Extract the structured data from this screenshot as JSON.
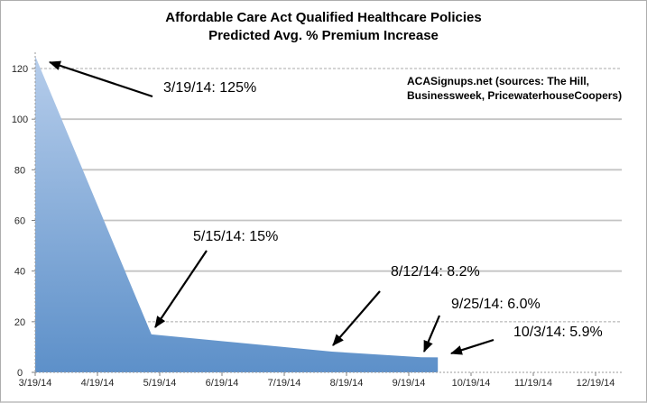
{
  "chart_data": {
    "type": "area",
    "title_lines": [
      "Affordable Care Act Qualified Healthcare Policies",
      "Predicted Avg. % Premium Increase"
    ],
    "source_lines": [
      "ACASignups.net (sources: The Hill,",
      "Businessweek, PricewaterhouseCoopers)"
    ],
    "series": [
      {
        "name": "Predicted Avg. % Premium Increase",
        "points": [
          {
            "date": "3/19/14",
            "value": 125
          },
          {
            "date": "5/15/14",
            "value": 15
          },
          {
            "date": "8/12/14",
            "value": 8.2
          },
          {
            "date": "9/25/14",
            "value": 6.0
          },
          {
            "date": "10/3/14",
            "value": 5.9
          }
        ]
      }
    ],
    "annotations": [
      {
        "label": "3/19/14: 125%",
        "date": "3/19/14",
        "value": 125
      },
      {
        "label": "5/15/14: 15%",
        "date": "5/15/14",
        "value": 15
      },
      {
        "label": "8/12/14: 8.2%",
        "date": "8/12/14",
        "value": 8.2
      },
      {
        "label": "9/25/14: 6.0%",
        "date": "9/25/14",
        "value": 6.0
      },
      {
        "label": "10/3/14: 5.9%",
        "date": "10/3/14",
        "value": 5.9
      }
    ],
    "x_axis": {
      "tick_labels": [
        "3/19/14",
        "4/19/14",
        "5/19/14",
        "6/19/14",
        "7/19/14",
        "8/19/14",
        "9/19/14",
        "10/19/14",
        "11/19/14",
        "12/19/14"
      ]
    },
    "y_axis": {
      "ticks": [
        0,
        20,
        40,
        60,
        80,
        100,
        120
      ],
      "range": [
        0,
        126
      ]
    },
    "legend": null,
    "grid": "horizontal",
    "colors": {
      "area_top": "#b6cdeb",
      "area_bottom": "#5d90c9",
      "gridline_solid": "#c4c4c4",
      "gridline_dashed": "#a9a9a9",
      "axis_dotted": "#9a9a9a",
      "tick": "#7f7f7f",
      "arrow": "#000000",
      "text": "#000000"
    }
  }
}
